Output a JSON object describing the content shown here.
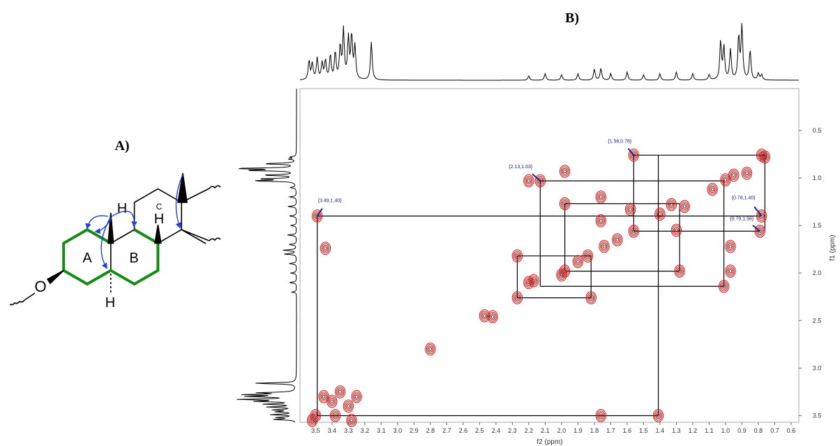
{
  "figure_a": {
    "label": "A)",
    "ring_labels": [
      "A",
      "B",
      "C"
    ],
    "atom_labels": [
      "H",
      "H",
      "H",
      "O"
    ]
  },
  "chart_data": {
    "type": "contour",
    "panel_label": "B)",
    "xlabel": "f2 (ppm)",
    "ylabel": "f1 (ppm)",
    "xlim": [
      3.595,
      0.553
    ],
    "ylim": [
      0.06,
      3.57
    ],
    "xticks": [
      3.5,
      3.4,
      3.3,
      3.2,
      3.1,
      {
        "value": 3,
        "label": "3.0"
      },
      2.9,
      2.8,
      2.7,
      2.6,
      2.5,
      2.4,
      2.3,
      2.2,
      2.1,
      {
        "value": 2,
        "label": "2.0"
      },
      1.9,
      1.8,
      1.7,
      1.6,
      1.5,
      1.4,
      1.3,
      1.2,
      1.1,
      {
        "value": 1,
        "label": "1.0"
      },
      0.9,
      0.8,
      0.7,
      0.6
    ],
    "yticks": [
      0.5,
      {
        "value": 1,
        "label": "1.0"
      },
      1.5,
      {
        "value": 2,
        "label": "2.0"
      },
      2.5,
      {
        "value": 3,
        "label": "3.0"
      },
      3.5
    ],
    "color": "#d41515",
    "x": [
      0.78,
      0.76,
      1.56,
      0.78,
      0.79,
      3.49,
      2.13,
      2.2,
      1.98,
      1.0,
      0.95,
      1.41,
      1.76,
      1.76,
      1.76,
      1.98,
      1.56,
      1.58,
      1.4,
      1.33,
      1.25,
      1.98,
      1.9,
      1.84,
      1.74,
      1.66,
      2.27,
      2.27,
      2.2,
      1.82,
      1.28,
      1.01,
      0.97,
      0.97,
      2.47,
      2.42,
      2.8,
      3.44,
      1.3,
      1.08,
      0.87,
      2.0,
      2.17,
      3.5,
      3.45,
      3.4,
      3.35,
      3.3,
      3.25,
      3.38,
      3.28,
      3.52
    ],
    "y": [
      0.76,
      0.78,
      0.76,
      1.4,
      1.56,
      1.4,
      1.03,
      1.03,
      0.93,
      1.02,
      0.97,
      3.5,
      3.5,
      1.2,
      1.45,
      1.27,
      1.56,
      1.33,
      1.38,
      1.28,
      1.3,
      1.98,
      1.88,
      1.82,
      1.72,
      1.65,
      1.82,
      2.26,
      2.1,
      2.26,
      1.98,
      2.14,
      1.98,
      1.72,
      2.45,
      2.46,
      2.8,
      1.74,
      1.55,
      1.12,
      0.95,
      2.02,
      2.08,
      3.5,
      3.3,
      3.35,
      3.25,
      3.4,
      3.3,
      3.5,
      3.55,
      3.55
    ],
    "correlation_lines": [
      [
        3.49,
        1.4,
        0.78,
        1.4
      ],
      [
        3.49,
        1.4,
        3.49,
        3.5
      ],
      [
        3.49,
        3.5,
        1.41,
        3.5
      ],
      [
        1.41,
        3.5,
        1.41,
        0.76
      ],
      [
        1.56,
        0.76,
        0.76,
        0.76
      ],
      [
        0.76,
        0.76,
        0.76,
        1.56
      ],
      [
        1.56,
        1.56,
        0.79,
        1.56
      ],
      [
        1.56,
        0.76,
        1.56,
        1.56
      ],
      [
        2.13,
        1.03,
        1.01,
        1.03
      ],
      [
        2.13,
        1.03,
        2.13,
        2.14
      ],
      [
        2.13,
        2.14,
        1.01,
        2.14
      ],
      [
        1.01,
        1.03,
        1.01,
        2.14
      ],
      [
        1.98,
        1.27,
        1.28,
        1.27
      ],
      [
        1.98,
        1.27,
        1.98,
        1.98
      ],
      [
        1.98,
        1.98,
        1.28,
        1.98
      ],
      [
        1.28,
        1.27,
        1.28,
        1.98
      ],
      [
        2.27,
        1.82,
        1.82,
        1.82
      ],
      [
        2.27,
        1.82,
        2.27,
        2.26
      ],
      [
        2.27,
        2.26,
        1.82,
        2.26
      ],
      [
        1.82,
        1.82,
        1.82,
        2.26
      ]
    ],
    "annotations": [
      {
        "label": "{3.49,1.40}",
        "x": 3.49,
        "y": 1.4
      },
      {
        "label": "{2.13,1.03}",
        "x": 2.13,
        "y": 1.03
      },
      {
        "label": "{1.56,0.76}",
        "x": 1.56,
        "y": 0.76
      },
      {
        "label": "{0.78,1.40}",
        "x": 0.78,
        "y": 1.4
      },
      {
        "label": "{0.79,1.56}",
        "x": 0.79,
        "y": 1.56
      }
    ],
    "projection": {
      "ppm": [
        3.54,
        3.52,
        3.49,
        3.46,
        3.44,
        3.41,
        3.38,
        3.35,
        3.33,
        3.3,
        3.28,
        3.26,
        3.16,
        2.2,
        2.1,
        2.0,
        1.9,
        1.8,
        1.76,
        1.7,
        1.6,
        1.5,
        1.4,
        1.3,
        1.2,
        1.1,
        1.03,
        1.01,
        0.97,
        0.92,
        0.9,
        0.85,
        0.8,
        0.78
      ],
      "intensity": [
        0.35,
        0.3,
        0.4,
        0.3,
        0.35,
        0.45,
        0.5,
        0.6,
        0.9,
        0.75,
        0.8,
        0.6,
        0.7,
        0.08,
        0.12,
        0.1,
        0.12,
        0.2,
        0.22,
        0.12,
        0.15,
        0.1,
        0.12,
        0.15,
        0.12,
        0.1,
        0.7,
        0.6,
        0.55,
        0.8,
        1.0,
        0.55,
        0.12,
        0.1
      ]
    }
  }
}
